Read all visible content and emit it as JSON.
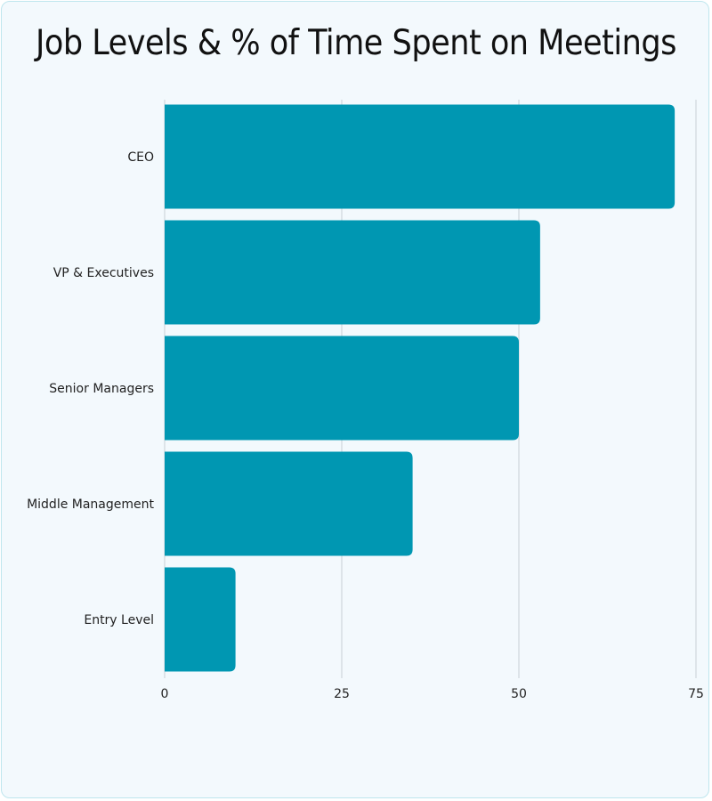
{
  "chart_data": {
    "type": "bar",
    "orientation": "horizontal",
    "title": "Job Levels & % of Time Spent on Meetings",
    "categories": [
      "CEO",
      "VP & Executives",
      "Senior Managers",
      "Middle Management",
      "Entry Level"
    ],
    "values": [
      72,
      53,
      50,
      35,
      10
    ],
    "xlim": [
      0,
      75
    ],
    "xticks": [
      0,
      25,
      50,
      75
    ],
    "xlabel": "",
    "ylabel": "",
    "grid": true,
    "bar_color": "#0097b2",
    "background_color": "#f3f9fd"
  }
}
